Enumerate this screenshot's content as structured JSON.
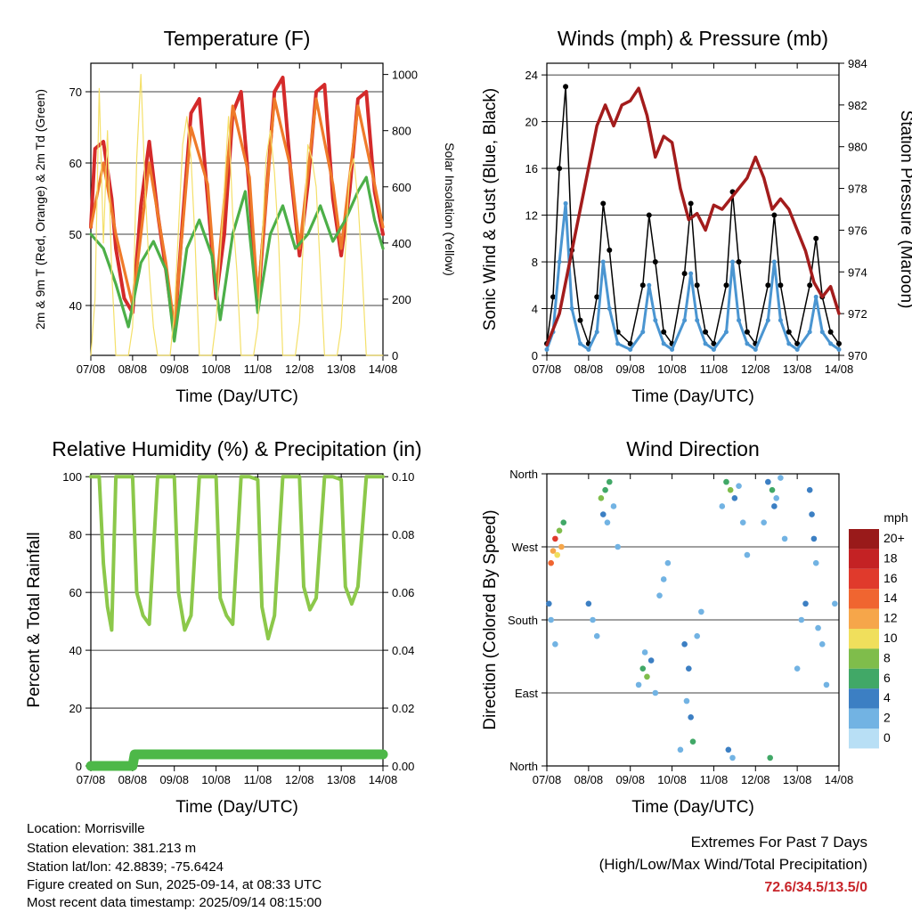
{
  "x_ticks": [
    "07/08",
    "08/08",
    "09/08",
    "10/08",
    "11/08",
    "12/08",
    "13/08",
    "14/08"
  ],
  "x_label": "Time (Day/UTC)",
  "colors": {
    "temp_2m": "#d42a2a",
    "temp_9m": "#ef7a2a",
    "dewpoint": "#4caf48",
    "solar": "#f4e06a",
    "wind": "#4a95d1",
    "gust": "#000000",
    "pressure": "#a31c1c",
    "rh": "#8cc84a",
    "precip": "#4db848",
    "extremes_value": "#c8262b"
  },
  "chart_data": [
    {
      "id": "temperature",
      "type": "line",
      "title": "Temperature (F)",
      "ylabel": "2m & 9m T (Red, Orange) & 2m Td (Green)",
      "y2label": "Solar Insolation (Yellow)",
      "ylim": [
        33,
        74
      ],
      "yticks": [
        40,
        50,
        60,
        70
      ],
      "y2lim": [
        0,
        1040
      ],
      "y2ticks": [
        0,
        200,
        400,
        600,
        800,
        1000
      ],
      "xlim": [
        0,
        7
      ],
      "grid": true,
      "series": [
        {
          "key": "temp_2m",
          "x": [
            0,
            0.1,
            0.3,
            0.5,
            0.6,
            0.8,
            1.0,
            1.2,
            1.4,
            1.6,
            1.8,
            2.0,
            2.2,
            2.4,
            2.6,
            2.8,
            3.0,
            3.2,
            3.4,
            3.6,
            3.8,
            4.0,
            4.2,
            4.4,
            4.6,
            4.8,
            5.0,
            5.2,
            5.4,
            5.6,
            5.8,
            6.0,
            6.2,
            6.4,
            6.6,
            6.8,
            7.0
          ],
          "values": [
            51,
            62,
            63,
            55,
            48,
            41,
            39,
            54,
            63,
            53,
            45,
            36,
            52,
            67,
            69,
            55,
            41,
            50,
            67,
            70,
            56,
            40,
            55,
            70,
            72,
            58,
            47,
            57,
            70,
            71,
            55,
            47,
            56,
            69,
            70,
            56,
            50
          ]
        },
        {
          "key": "temp_9m",
          "x": [
            0,
            0.3,
            0.6,
            1.0,
            1.4,
            1.8,
            2.0,
            2.4,
            2.8,
            3.0,
            3.4,
            3.8,
            4.0,
            4.4,
            4.8,
            5.0,
            5.4,
            5.8,
            6.0,
            6.4,
            6.8,
            7.0
          ],
          "values": [
            51,
            60,
            50,
            40,
            60,
            46,
            37,
            65,
            57,
            42,
            68,
            58,
            41,
            69,
            59,
            48,
            69,
            57,
            48,
            68,
            57,
            51
          ]
        },
        {
          "key": "dewpoint",
          "x": [
            0,
            0.3,
            0.6,
            0.9,
            1.2,
            1.5,
            1.8,
            2.0,
            2.3,
            2.6,
            2.9,
            3.1,
            3.4,
            3.7,
            4.0,
            4.3,
            4.6,
            4.9,
            5.2,
            5.5,
            5.8,
            6.1,
            6.4,
            6.6,
            6.8,
            7.0
          ],
          "values": [
            50,
            48,
            43,
            37,
            46,
            49,
            45,
            35,
            48,
            52,
            47,
            38,
            50,
            56,
            39,
            50,
            54,
            48,
            50,
            54,
            49,
            52,
            56,
            58,
            52,
            48
          ]
        },
        {
          "key": "solar",
          "axis": "y2",
          "x": [
            0,
            0.1,
            0.2,
            0.3,
            0.4,
            0.5,
            0.6,
            0.9,
            1.0,
            1.1,
            1.2,
            1.3,
            1.4,
            1.5,
            1.6,
            1.9,
            2.0,
            2.2,
            2.3,
            2.4,
            2.5,
            2.6,
            2.9,
            3.0,
            3.2,
            3.3,
            3.4,
            3.5,
            3.6,
            3.9,
            4.0,
            4.2,
            4.3,
            4.4,
            4.5,
            4.6,
            4.9,
            5.0,
            5.2,
            5.3,
            5.4,
            5.5,
            5.6,
            5.9,
            6.0,
            6.2,
            6.3,
            6.4,
            6.5,
            6.6,
            6.9,
            7.0
          ],
          "values": [
            0,
            200,
            950,
            400,
            800,
            300,
            0,
            0,
            100,
            700,
            1000,
            600,
            300,
            100,
            0,
            0,
            150,
            750,
            850,
            700,
            400,
            0,
            0,
            120,
            600,
            850,
            500,
            300,
            0,
            0,
            100,
            700,
            800,
            650,
            400,
            0,
            0,
            120,
            750,
            700,
            600,
            300,
            0,
            0,
            100,
            650,
            700,
            550,
            300,
            0,
            0,
            0
          ]
        }
      ]
    },
    {
      "id": "winds",
      "type": "scatter",
      "title": "Winds (mph) & Pressure (mb)",
      "ylabel": "Sonic Wind & Gust (Blue, Black)",
      "y2label": "Station Pressure (Maroon)",
      "ylim": [
        0,
        25
      ],
      "yticks": [
        0,
        4,
        8,
        12,
        16,
        20,
        24
      ],
      "y2lim": [
        970,
        984
      ],
      "y2ticks": [
        970,
        972,
        974,
        976,
        978,
        980,
        982,
        984
      ],
      "xlim": [
        0,
        7
      ],
      "grid": true,
      "series": [
        {
          "key": "gust",
          "x": [
            0,
            0.15,
            0.3,
            0.45,
            0.6,
            0.8,
            1.0,
            1.2,
            1.35,
            1.5,
            1.7,
            2.0,
            2.3,
            2.45,
            2.6,
            2.8,
            3.0,
            3.3,
            3.45,
            3.6,
            3.8,
            4.0,
            4.3,
            4.45,
            4.6,
            4.8,
            5.0,
            5.3,
            5.45,
            5.6,
            5.8,
            6.0,
            6.3,
            6.45,
            6.6,
            6.8,
            7.0
          ],
          "values": [
            1,
            5,
            16,
            23,
            9,
            3,
            1,
            5,
            13,
            9,
            2,
            1,
            6,
            12,
            8,
            2,
            1,
            7,
            13,
            6,
            2,
            1,
            6,
            14,
            8,
            2,
            1,
            6,
            12,
            6,
            2,
            1,
            6,
            10,
            5,
            2,
            1
          ]
        },
        {
          "key": "wind",
          "x": [
            0,
            0.15,
            0.3,
            0.45,
            0.6,
            0.8,
            1.0,
            1.2,
            1.35,
            1.5,
            1.7,
            2.0,
            2.3,
            2.45,
            2.6,
            2.8,
            3.0,
            3.3,
            3.45,
            3.6,
            3.8,
            4.0,
            4.3,
            4.45,
            4.6,
            4.8,
            5.0,
            5.3,
            5.45,
            5.6,
            5.8,
            6.0,
            6.3,
            6.45,
            6.6,
            6.8,
            7.0
          ],
          "values": [
            0.5,
            2,
            8,
            13,
            4,
            1,
            0.5,
            2,
            8,
            4,
            1,
            0.5,
            2,
            6,
            3,
            1,
            0.5,
            3,
            7,
            3,
            1,
            0.5,
            2,
            8,
            3,
            1,
            0.5,
            3,
            8,
            3,
            1,
            0.5,
            2,
            5,
            2,
            1,
            0.5
          ]
        },
        {
          "key": "pressure",
          "axis": "y2",
          "x": [
            0,
            0.3,
            0.6,
            0.9,
            1.2,
            1.4,
            1.6,
            1.8,
            2.0,
            2.2,
            2.4,
            2.6,
            2.8,
            3.0,
            3.2,
            3.4,
            3.6,
            3.8,
            4.0,
            4.2,
            4.4,
            4.6,
            4.8,
            5.0,
            5.2,
            5.4,
            5.6,
            5.8,
            6.0,
            6.2,
            6.4,
            6.6,
            6.8,
            7.0
          ],
          "values": [
            970.5,
            972,
            975,
            978,
            981,
            982,
            981,
            982,
            982.2,
            982.8,
            981.5,
            979.5,
            980.5,
            980.2,
            978,
            976.5,
            976.8,
            976,
            977.2,
            977,
            977.5,
            978,
            978.5,
            979.5,
            978.5,
            977,
            977.5,
            977,
            976,
            975,
            973.5,
            972.8,
            973.3,
            972
          ]
        }
      ]
    },
    {
      "id": "humidity",
      "type": "line",
      "title": "Relative Humidity (%) & Precipitation (in)",
      "ylabel": "Percent & Total Rainfall",
      "ylim": [
        0,
        101
      ],
      "yticks": [
        0,
        20,
        40,
        60,
        80,
        100
      ],
      "y2lim": [
        0,
        0.101
      ],
      "y2ticks": [
        "0.00",
        "0.02",
        "0.04",
        "0.06",
        "0.08",
        "0.10"
      ],
      "xlim": [
        0,
        7
      ],
      "grid": true,
      "series": [
        {
          "key": "rh",
          "x": [
            0,
            0.1,
            0.2,
            0.3,
            0.4,
            0.5,
            0.6,
            0.7,
            0.9,
            1.0,
            1.1,
            1.25,
            1.4,
            1.6,
            1.8,
            2.0,
            2.1,
            2.25,
            2.4,
            2.6,
            2.8,
            3.0,
            3.1,
            3.25,
            3.4,
            3.6,
            3.8,
            4.0,
            4.1,
            4.25,
            4.4,
            4.6,
            4.8,
            5.0,
            5.1,
            5.25,
            5.4,
            5.6,
            5.8,
            6.0,
            6.1,
            6.25,
            6.4,
            6.6,
            6.8,
            7.0
          ],
          "values": [
            100,
            100,
            100,
            70,
            55,
            47,
            100,
            100,
            100,
            100,
            60,
            52,
            49,
            100,
            100,
            100,
            60,
            47,
            52,
            100,
            100,
            100,
            58,
            52,
            49,
            100,
            100,
            99,
            55,
            44,
            52,
            100,
            100,
            100,
            62,
            54,
            58,
            100,
            100,
            99,
            62,
            56,
            62,
            100,
            100,
            100
          ]
        },
        {
          "key": "precip",
          "axis": "y2",
          "x": [
            0,
            1.0,
            1.05,
            7.0
          ],
          "values": [
            0,
            0,
            0.004,
            0.004
          ]
        }
      ]
    },
    {
      "id": "direction",
      "type": "scatter",
      "title": "Wind Direction",
      "ylabel": "Direction (Colored By Speed)",
      "yticks": [
        "North",
        "East",
        "South",
        "West",
        "North"
      ],
      "ylim": [
        0,
        360
      ],
      "xlim": [
        0,
        7
      ],
      "grid": true,
      "colorbar": {
        "title": "mph",
        "labels": [
          "20+",
          "18",
          "16",
          "14",
          "12",
          "10",
          "8",
          "6",
          "4",
          "2",
          "0"
        ],
        "colors": [
          "#991a1a",
          "#c42224",
          "#e03a2c",
          "#f06530",
          "#f6a64a",
          "#f0df5c",
          "#7fbd4b",
          "#41a867",
          "#3c7fc3",
          "#72b3e3",
          "#b8dff5"
        ]
      },
      "points": [
        [
          0.1,
          250,
          14
        ],
        [
          0.15,
          265,
          12
        ],
        [
          0.2,
          280,
          16
        ],
        [
          0.25,
          260,
          10
        ],
        [
          0.3,
          290,
          8
        ],
        [
          0.35,
          270,
          12
        ],
        [
          0.4,
          300,
          6
        ],
        [
          0.05,
          200,
          4
        ],
        [
          0.1,
          180,
          2
        ],
        [
          0.2,
          150,
          2
        ],
        [
          1.3,
          330,
          8
        ],
        [
          1.4,
          340,
          6
        ],
        [
          1.5,
          350,
          6
        ],
        [
          1.35,
          310,
          4
        ],
        [
          1.45,
          300,
          2
        ],
        [
          1.6,
          320,
          2
        ],
        [
          1.7,
          270,
          2
        ],
        [
          1.0,
          200,
          4
        ],
        [
          1.1,
          180,
          2
        ],
        [
          1.2,
          160,
          2
        ],
        [
          2.3,
          120,
          6
        ],
        [
          2.4,
          110,
          8
        ],
        [
          2.5,
          130,
          4
        ],
        [
          2.35,
          140,
          2
        ],
        [
          2.2,
          100,
          2
        ],
        [
          2.6,
          90,
          2
        ],
        [
          2.7,
          210,
          2
        ],
        [
          2.8,
          230,
          2
        ],
        [
          2.9,
          250,
          2
        ],
        [
          3.3,
          150,
          4
        ],
        [
          3.4,
          120,
          4
        ],
        [
          3.45,
          60,
          4
        ],
        [
          3.5,
          30,
          6
        ],
        [
          3.6,
          160,
          2
        ],
        [
          3.7,
          190,
          2
        ],
        [
          3.2,
          20,
          2
        ],
        [
          3.35,
          80,
          2
        ],
        [
          4.3,
          350,
          6
        ],
        [
          4.4,
          340,
          8
        ],
        [
          4.5,
          330,
          4
        ],
        [
          4.2,
          320,
          2
        ],
        [
          4.6,
          345,
          2
        ],
        [
          4.7,
          300,
          2
        ],
        [
          4.35,
          20,
          4
        ],
        [
          4.45,
          10,
          2
        ],
        [
          4.8,
          260,
          2
        ],
        [
          5.3,
          350,
          4
        ],
        [
          5.4,
          340,
          6
        ],
        [
          5.45,
          320,
          4
        ],
        [
          5.5,
          330,
          2
        ],
        [
          5.6,
          355,
          2
        ],
        [
          5.2,
          300,
          2
        ],
        [
          5.35,
          10,
          6
        ],
        [
          5.7,
          280,
          2
        ],
        [
          6.3,
          340,
          4
        ],
        [
          6.35,
          310,
          4
        ],
        [
          6.4,
          280,
          4
        ],
        [
          6.45,
          250,
          2
        ],
        [
          6.2,
          200,
          4
        ],
        [
          6.1,
          180,
          2
        ],
        [
          6.5,
          170,
          2
        ],
        [
          6.6,
          150,
          2
        ],
        [
          6.0,
          120,
          2
        ],
        [
          6.7,
          100,
          2
        ],
        [
          6.9,
          200,
          2
        ]
      ]
    }
  ],
  "footer": {
    "location": "Location: Morrisville",
    "elevation": "Station elevation: 381.213 m",
    "latlon": "Station lat/lon: 42.8839; -75.6424",
    "created": "Figure created on Sun, 2025-09-14, at 08:33 UTC",
    "recent": "Most recent data timestamp: 2025/09/14 08:15:00"
  },
  "extremes": {
    "title": "Extremes For Past 7 Days",
    "subtitle": "(High/Low/Max Wind/Total Precipitation)",
    "values": "72.6/34.5/13.5/0"
  }
}
